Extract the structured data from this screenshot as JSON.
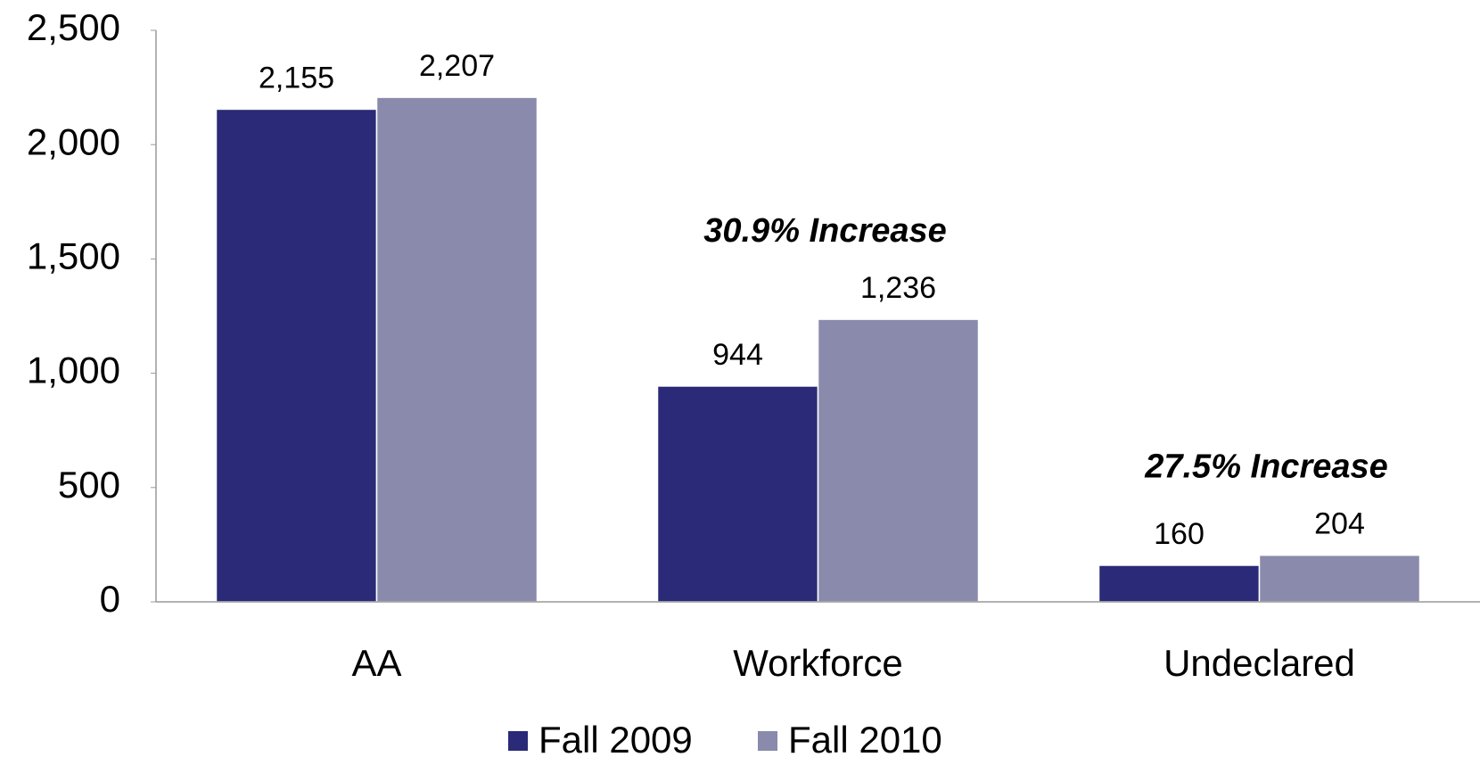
{
  "chart_data": {
    "type": "bar",
    "categories": [
      "AA",
      "Workforce",
      "Undeclared"
    ],
    "series": [
      {
        "name": "Fall 2009",
        "color": "#2a2a78",
        "values": [
          2155,
          944,
          160
        ],
        "value_labels": [
          "2,155",
          "944",
          "160"
        ]
      },
      {
        "name": "Fall 2010",
        "color": "#8a8aad",
        "values": [
          2207,
          1236,
          204
        ],
        "value_labels": [
          "2,207",
          "1,236",
          "204"
        ]
      }
    ],
    "ylim": [
      0,
      2500
    ],
    "yticks": [
      0,
      500,
      {
        "value": 1000,
        "label": "1,000"
      },
      {
        "value": 1500,
        "label": "1,500"
      },
      {
        "value": 2000,
        "label": "2,000"
      },
      {
        "value": 2500,
        "label": "2,500"
      }
    ],
    "grid": false,
    "legend": "bottom",
    "annotations": [
      {
        "text": "30.9% Increase",
        "category": "Workforce",
        "color": "#1a1a9a"
      },
      {
        "text": "27.5% Increase",
        "category": "Undeclared",
        "color": "#1a1a9a"
      }
    ]
  }
}
